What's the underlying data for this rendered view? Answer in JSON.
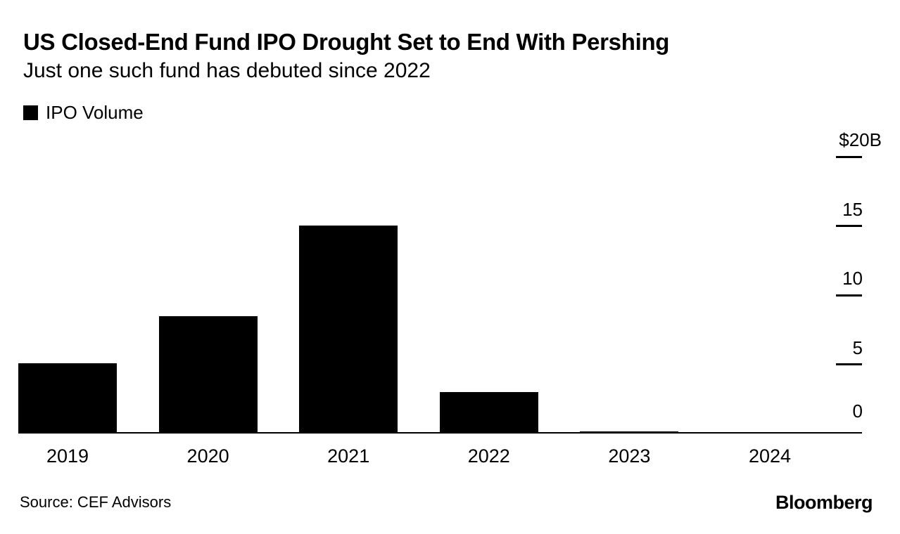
{
  "header": {
    "title": "US Closed-End Fund IPO Drought Set to End With Pershing",
    "subtitle": "Just one such fund has debuted since 2022"
  },
  "legend": {
    "items": [
      {
        "label": "IPO Volume",
        "swatch_color": "#000000"
      }
    ]
  },
  "chart_data": {
    "type": "bar",
    "title": "US Closed-End Fund IPO Drought Set to End With Pershing",
    "subtitle": "Just one such fund has debuted since 2022",
    "categories": [
      "2019",
      "2020",
      "2021",
      "2022",
      "2023",
      "2024"
    ],
    "series": [
      {
        "name": "IPO Volume",
        "values": [
          5.1,
          8.5,
          15.0,
          3.0,
          0.15,
          0.08
        ]
      }
    ],
    "ylim": [
      0,
      20
    ],
    "yticks": [
      {
        "label": "$20B",
        "value": 20
      },
      {
        "label": "15",
        "value": 15
      },
      {
        "label": "10",
        "value": 10
      },
      {
        "label": "5",
        "value": 5
      },
      {
        "label": "0",
        "value": 0
      }
    ],
    "bar_color": "#000000",
    "axis_color": "#000000",
    "legend_position": "top-left",
    "grid": false,
    "yaxis_side": "right"
  },
  "footer": {
    "source": "Source: CEF Advisors",
    "brand": "Bloomberg"
  }
}
